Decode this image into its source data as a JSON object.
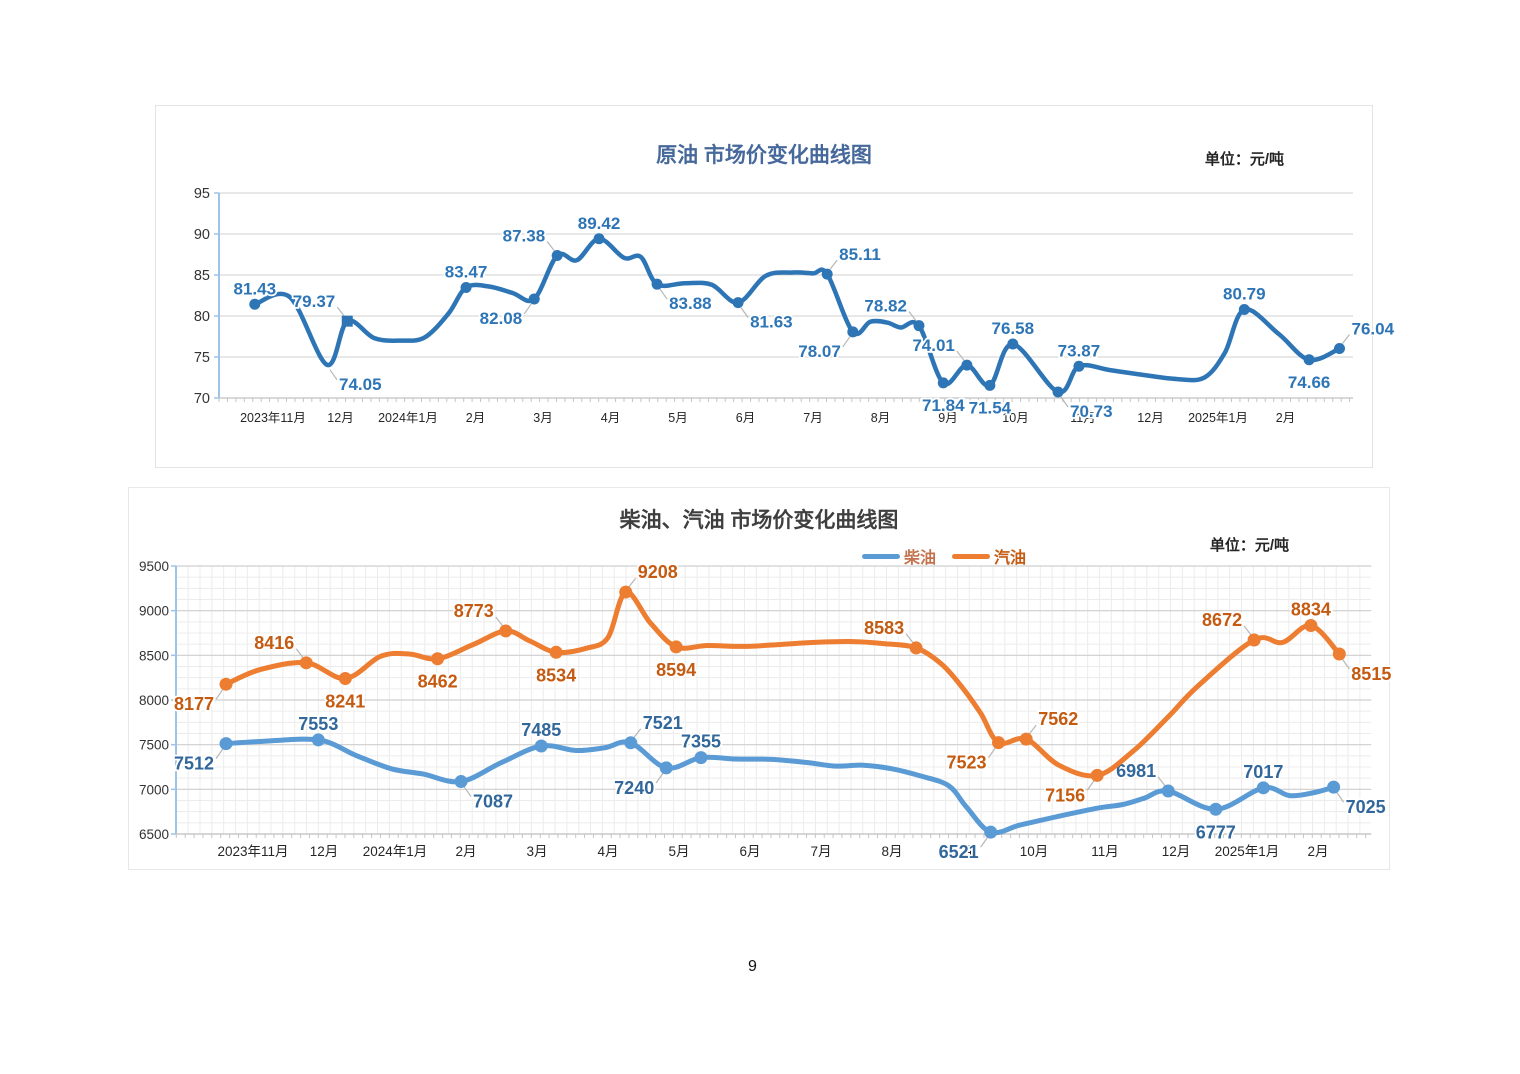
{
  "page": {
    "number": "9"
  },
  "chart_data": [
    {
      "type": "line",
      "title": "原油 市场价变化曲线图",
      "unit_label": "单位：元/吨",
      "title_color": "#46689B",
      "ylim": [
        70,
        95
      ],
      "ystep": 5,
      "yticks": [
        "95",
        "90",
        "85",
        "80",
        "75",
        "70"
      ],
      "months": [
        "2023年11月",
        "12月",
        "2024年1月",
        "2月",
        "3月",
        "4月",
        "5月",
        "6月",
        "7月",
        "8月",
        "9月",
        "10月",
        "11月",
        "12月",
        "2025年1月",
        "2月"
      ],
      "grid": "horizontal-only",
      "series": [
        {
          "name": "原油",
          "color": "#2E75B6",
          "label_color": "#2E75B6",
          "points": [
            [
              -0.27,
              81.43,
              "81.43",
              "a"
            ],
            [
              0.25,
              82.3
            ],
            [
              0.8,
              74.05,
              "74.05",
              "br",
              "nm"
            ],
            [
              1.1,
              79.37,
              "79.37",
              "al",
              "sq"
            ],
            [
              1.5,
              77.3
            ],
            [
              1.9,
              77.0
            ],
            [
              2.25,
              77.4
            ],
            [
              2.6,
              80.3
            ],
            [
              2.86,
              83.47,
              "83.47",
              "a"
            ],
            [
              3.2,
              83.6
            ],
            [
              3.55,
              82.8
            ],
            [
              3.87,
              82.08,
              "82.08",
              "bl"
            ],
            [
              4.21,
              87.38,
              "87.38",
              "al"
            ],
            [
              4.5,
              86.8
            ],
            [
              4.83,
              89.42,
              "89.42",
              "a"
            ],
            [
              5.2,
              87.1
            ],
            [
              5.45,
              87.2
            ],
            [
              5.69,
              83.88,
              "83.88",
              "br"
            ],
            [
              6.1,
              84.0
            ],
            [
              6.5,
              83.8
            ],
            [
              6.89,
              81.63,
              "81.63",
              "br"
            ],
            [
              7.3,
              84.9
            ],
            [
              7.7,
              85.3
            ],
            [
              8.0,
              85.2
            ],
            [
              8.21,
              85.11,
              "85.11",
              "ar"
            ],
            [
              8.59,
              78.07,
              "78.07",
              "bl"
            ],
            [
              8.85,
              79.3
            ],
            [
              9.1,
              79.2
            ],
            [
              9.3,
              78.6
            ],
            [
              9.57,
              78.82,
              "78.82",
              "al"
            ],
            [
              9.93,
              71.84,
              "71.84",
              "b"
            ],
            [
              10.28,
              74.01,
              "74.01",
              "al"
            ],
            [
              10.62,
              71.54,
              "71.54",
              "b"
            ],
            [
              10.96,
              76.58,
              "76.58",
              "a"
            ],
            [
              11.63,
              70.73,
              "70.73",
              "br"
            ],
            [
              11.94,
              73.87,
              "73.87",
              "a"
            ],
            [
              12.4,
              73.4
            ],
            [
              12.9,
              72.8
            ],
            [
              13.4,
              72.3
            ],
            [
              13.8,
              72.5
            ],
            [
              14.1,
              75.5
            ],
            [
              14.39,
              80.79,
              "80.79",
              "a"
            ],
            [
              14.9,
              77.8
            ],
            [
              15.35,
              74.66,
              "74.66",
              "b"
            ],
            [
              15.8,
              76.04,
              "76.04",
              "ar"
            ]
          ]
        }
      ]
    },
    {
      "type": "line",
      "title": "柴油、汽油 市场价变化曲线图",
      "unit_label": "单位：元/吨",
      "title_color": "#3F3F3F",
      "ylim": [
        6500,
        9500
      ],
      "ystep": 500,
      "yticks": [
        "9500",
        "9000",
        "8500",
        "8000",
        "7500",
        "7000",
        "6500"
      ],
      "months": [
        "2023年11月",
        "12月",
        "2024年1月",
        "2月",
        "3月",
        "4月",
        "5月",
        "6月",
        "7月",
        "8月",
        "9月",
        "10月",
        "11月",
        "12月",
        "2025年1月",
        "2月"
      ],
      "grid": "fine-mesh",
      "legend": [
        {
          "label": "柴油",
          "color": "#5B9BD5",
          "text_color": "#C4734E"
        },
        {
          "label": "汽油",
          "color": "#ED7D31",
          "text_color": "#C55A11"
        }
      ],
      "series": [
        {
          "name": "柴油",
          "color": "#5B9BD5",
          "label_color": "#31679B",
          "points": [
            [
              -0.38,
              7512,
              "7512",
              "bl"
            ],
            [
              0.1,
              7535
            ],
            [
              0.92,
              7553,
              "7553",
              "a"
            ],
            [
              1.45,
              7380
            ],
            [
              1.95,
              7230
            ],
            [
              2.4,
              7170
            ],
            [
              2.93,
              7087,
              "7087",
              "br"
            ],
            [
              3.5,
              7300
            ],
            [
              4.06,
              7485,
              "7485",
              "a"
            ],
            [
              4.55,
              7435
            ],
            [
              4.95,
              7465
            ],
            [
              5.32,
              7521,
              "7521",
              "ar"
            ],
            [
              5.82,
              7240,
              "7240",
              "bl"
            ],
            [
              6.31,
              7355,
              "7355",
              "a"
            ],
            [
              6.8,
              7340
            ],
            [
              7.3,
              7335
            ],
            [
              7.8,
              7300
            ],
            [
              8.2,
              7260
            ],
            [
              8.6,
              7270
            ],
            [
              9.0,
              7230
            ],
            [
              9.4,
              7150
            ],
            [
              9.8,
              7040
            ],
            [
              10.05,
              6800
            ],
            [
              10.39,
              6521,
              "6521",
              "bl"
            ],
            [
              10.8,
              6600
            ],
            [
              11.3,
              6690
            ],
            [
              11.9,
              6790
            ],
            [
              12.25,
              6830
            ],
            [
              12.55,
              6900
            ],
            [
              12.89,
              6981,
              "6981",
              "al"
            ],
            [
              13.56,
              6777,
              "6777",
              "b"
            ],
            [
              14.23,
              7017,
              "7017",
              "a"
            ],
            [
              14.6,
              6930
            ],
            [
              14.95,
              6965
            ],
            [
              15.22,
              7025,
              "7025",
              "br"
            ]
          ]
        },
        {
          "name": "汽油",
          "color": "#ED7D31",
          "label_color": "#C55A11",
          "points": [
            [
              -0.38,
              8177,
              "8177",
              "bl"
            ],
            [
              0.1,
              8340
            ],
            [
              0.75,
              8416,
              "8416",
              "al"
            ],
            [
              1.3,
              8241,
              "8241",
              "b"
            ],
            [
              1.8,
              8490
            ],
            [
              2.2,
              8515
            ],
            [
              2.6,
              8462,
              "8462",
              "b"
            ],
            [
              3.1,
              8620
            ],
            [
              3.56,
              8773,
              "8773",
              "al"
            ],
            [
              3.9,
              8660
            ],
            [
              4.27,
              8534,
              "8534",
              "b"
            ],
            [
              4.7,
              8580
            ],
            [
              5.0,
              8700
            ],
            [
              5.25,
              9208,
              "9208",
              "ar"
            ],
            [
              5.6,
              8860
            ],
            [
              5.96,
              8594,
              "8594",
              "b"
            ],
            [
              6.4,
              8610
            ],
            [
              6.9,
              8600
            ],
            [
              7.4,
              8620
            ],
            [
              7.9,
              8645
            ],
            [
              8.4,
              8655
            ],
            [
              8.9,
              8630
            ],
            [
              9.34,
              8583,
              "8583",
              "al"
            ],
            [
              9.7,
              8400
            ],
            [
              10.0,
              8130
            ],
            [
              10.25,
              7850
            ],
            [
              10.5,
              7523,
              "7523",
              "bl"
            ],
            [
              10.89,
              7562,
              "7562",
              "ar"
            ],
            [
              11.35,
              7270
            ],
            [
              11.89,
              7156,
              "7156",
              "bl"
            ],
            [
              12.4,
              7430
            ],
            [
              12.9,
              7820
            ],
            [
              13.3,
              8150
            ],
            [
              14.1,
              8672,
              "8672",
              "al"
            ],
            [
              14.5,
              8645
            ],
            [
              14.9,
              8834,
              "8834",
              "a"
            ],
            [
              15.3,
              8515,
              "8515",
              "br"
            ]
          ]
        }
      ]
    }
  ]
}
